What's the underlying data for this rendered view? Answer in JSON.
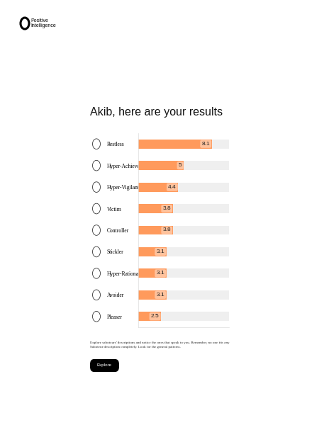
{
  "header": {
    "logo": [
      "Positive",
      "Intelligence"
    ]
  },
  "chart_data": {
    "type": "bar",
    "orientation": "horizontal",
    "title": "Akib, here are your results",
    "categories": [
      "Restless",
      "Hyper-Achiever",
      "Hyper-Vigilant",
      "Victim",
      "Controller",
      "Stickler",
      "Hyper-Rational",
      "Avoider",
      "Pleaser"
    ],
    "values": [
      8.1,
      5,
      4.4,
      3.8,
      3.8,
      3.1,
      3.1,
      3.1,
      2.5
    ],
    "color": "#ff9a5c",
    "xlim": [
      0,
      10
    ],
    "data_labels": true,
    "tick_labels": "y",
    "grid": false
  },
  "note": [
    "Explore saboteurs' descriptions and notice the ones that speak to you. Remember, no one fits any",
    "Saboteur description completely. Look for the general patterns."
  ],
  "button": "Explore"
}
